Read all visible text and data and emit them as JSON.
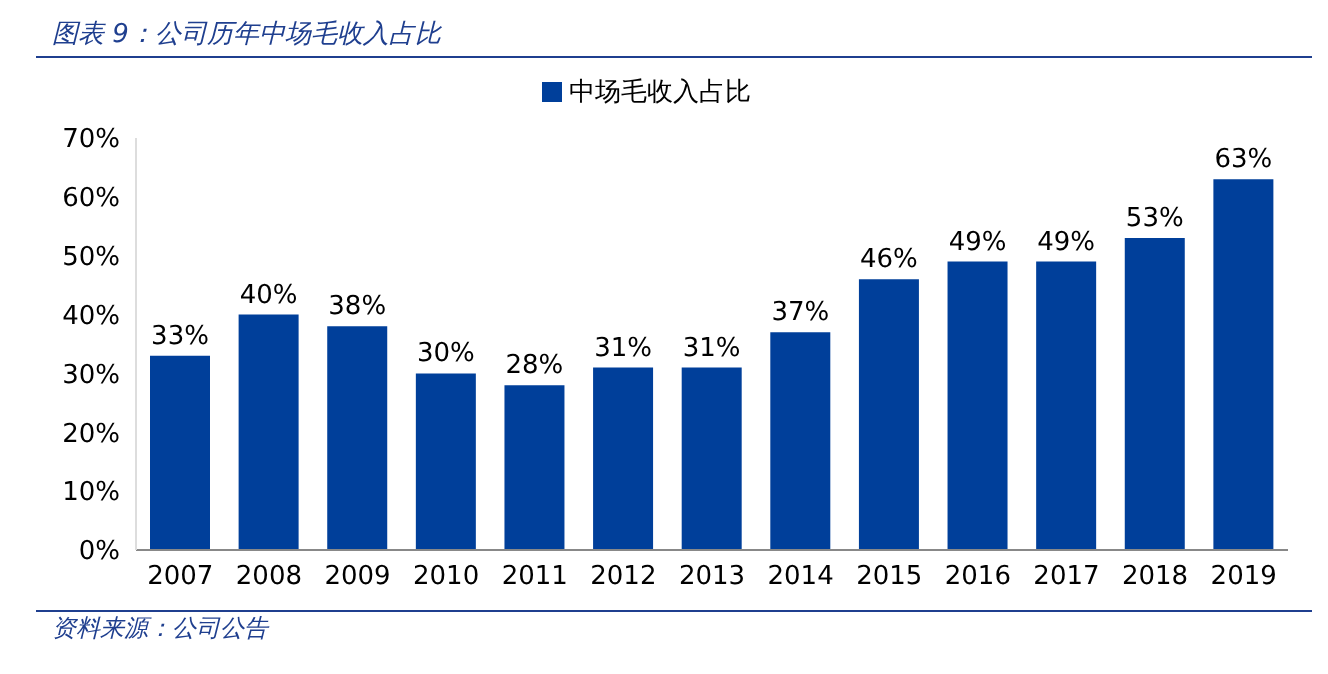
{
  "chart_data": {
    "type": "bar",
    "title": "图表 9：公司历年中场毛收入占比",
    "categories": [
      "2007",
      "2008",
      "2009",
      "2010",
      "2011",
      "2012",
      "2013",
      "2014",
      "2015",
      "2016",
      "2017",
      "2018",
      "2019"
    ],
    "series": [
      {
        "name": "中场毛收入占比",
        "color": "#003f9a",
        "values": [
          33,
          40,
          38,
          30,
          28,
          31,
          31,
          37,
          46,
          49,
          49,
          53,
          63
        ],
        "value_labels": [
          "33%",
          "40%",
          "38%",
          "30%",
          "28%",
          "31%",
          "31%",
          "37%",
          "46%",
          "49%",
          "49%",
          "53%",
          "63%"
        ]
      }
    ],
    "ylim": [
      0,
      70
    ],
    "yticks": [
      {
        "value": 0,
        "label": "0%"
      },
      {
        "value": 10,
        "label": "10%"
      },
      {
        "value": 20,
        "label": "20%"
      },
      {
        "value": 30,
        "label": "30%"
      },
      {
        "value": 40,
        "label": "40%"
      },
      {
        "value": 50,
        "label": "50%"
      },
      {
        "value": 60,
        "label": "60%"
      },
      {
        "value": 70,
        "label": "70%"
      }
    ],
    "grid": false,
    "legend": "top",
    "annotations": [
      "资料来源：公司公告"
    ]
  }
}
